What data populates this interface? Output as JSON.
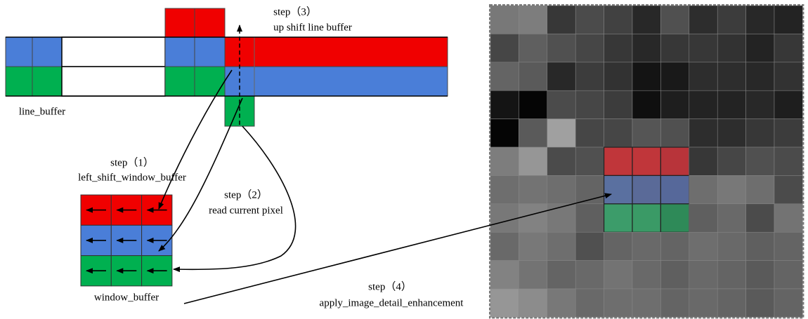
{
  "steps": {
    "step3": {
      "label": "step（3）",
      "description": "up shift line buffer"
    },
    "step1": {
      "label": "step（1）",
      "description": "left_shift_window_buffer"
    },
    "step2": {
      "label": "step（2）",
      "description": "read current pixel"
    },
    "step4": {
      "label": "step（4）",
      "description": "apply_image_detail_enhancement"
    }
  },
  "labels": {
    "line_buffer": "line_buffer",
    "window_buffer": "window_buffer"
  }
}
